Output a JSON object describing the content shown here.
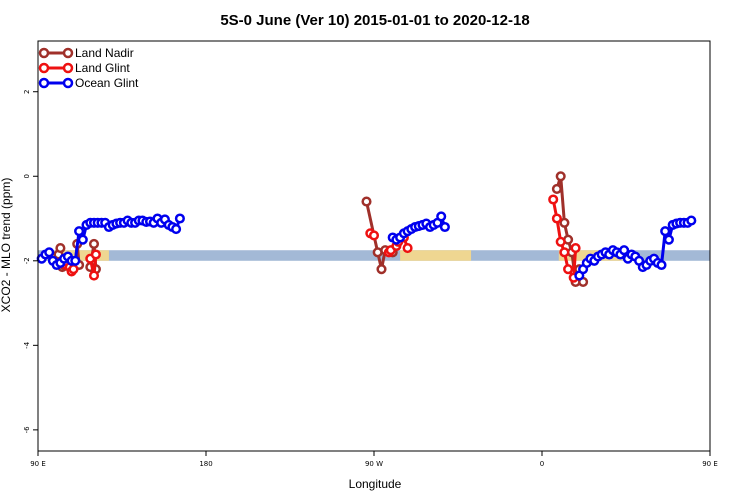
{
  "chart_data": {
    "type": "line",
    "title": "5S-0 June (Ver 10)   2015-01-01 to 2020-12-18",
    "xlabel": "Longitude",
    "ylabel": "XCO2 - MLO trend (ppm)",
    "xlim": [
      90,
      450
    ],
    "ylim": [
      -6.5,
      3.2
    ],
    "x_ticks": [
      {
        "value": 90,
        "label": "90 E"
      },
      {
        "value": 180,
        "label": "180"
      },
      {
        "value": 270,
        "label": "90 W"
      },
      {
        "value": 360,
        "label": "0"
      },
      {
        "value": 450,
        "label": "90 E"
      },
      {
        "value": 540,
        "label": "180"
      }
    ],
    "y_ticks": [
      {
        "value": 2,
        "label": "2"
      },
      {
        "value": 0,
        "label": "0"
      },
      {
        "value": -2,
        "label": "-2"
      },
      {
        "value": -4,
        "label": "-4"
      },
      {
        "value": -6,
        "label": "-6"
      }
    ],
    "colors": {
      "land_nadir": "#a0302a",
      "land_glint": "#ee1111",
      "ocean_glint": "#0000ee",
      "ocean_band": "#a3b9d6",
      "land_band": "#f7d98a"
    },
    "legend": {
      "position": "top-left",
      "entries": [
        "Land Nadir",
        "Land Glint",
        "Ocean Glint"
      ]
    },
    "surface_band": {
      "y_range": [
        -2.0,
        -1.75
      ],
      "ocean_color": "#a3b9d6",
      "land_color": "#f7d98a",
      "land_segments": [
        [
          98,
          128
        ],
        [
          284,
          322
        ],
        [
          369,
          403
        ],
        [
          467,
          484
        ],
        [
          514,
          531
        ]
      ]
    },
    "series": [
      {
        "name": "Land Nadir",
        "color": "#a0302a",
        "segments": [
          [
            [
              101,
              -1.85
            ],
            [
              102,
              -1.7
            ],
            [
              103,
              -2.15
            ],
            [
              104,
              -2.1
            ]
          ],
          [
            [
              108,
              -2.1
            ],
            [
              110,
              -2.1
            ],
            [
              111,
              -1.6
            ],
            [
              112,
              -2.1
            ]
          ],
          [
            [
              118,
              -2.15
            ],
            [
              120,
              -1.6
            ],
            [
              121,
              -2.2
            ]
          ],
          [
            [
              266,
              -0.6
            ],
            [
              272,
              -1.8
            ],
            [
              274,
              -2.2
            ],
            [
              276,
              -1.75
            ],
            [
              280,
              -1.8
            ]
          ],
          [
            [
              368,
              -0.3
            ],
            [
              370,
              0.0
            ],
            [
              372,
              -1.1
            ],
            [
              374,
              -1.5
            ],
            [
              376,
              -1.8
            ],
            [
              378,
              -2.5
            ],
            [
              380,
              -2.2
            ],
            [
              382,
              -2.5
            ]
          ],
          [
            [
              469,
              -1.7
            ],
            [
              470,
              -1.85
            ],
            [
              474,
              -1.85
            ],
            [
              476,
              -2.0
            ],
            [
              478,
              -1.6
            ],
            [
              480,
              -2.2
            ]
          ],
          [
            [
              480,
              -1.7
            ],
            [
              482,
              -1.85
            ],
            [
              484,
              -1.85
            ]
          ],
          [
            [
              488,
              -1.75
            ],
            [
              489,
              -1.55
            ]
          ]
        ]
      },
      {
        "name": "Land Glint",
        "color": "#ee1111",
        "segments": [
          [
            [
              105,
              -2.1
            ],
            [
              106,
              -2.05
            ],
            [
              107,
              -2.15
            ],
            [
              108,
              -2.25
            ],
            [
              109,
              -2.2
            ]
          ],
          [
            [
              118,
              -1.95
            ],
            [
              120,
              -2.35
            ],
            [
              121,
              -1.85
            ]
          ],
          [
            [
              268,
              -1.35
            ],
            [
              270,
              -1.4
            ]
          ],
          [
            [
              278,
              -1.8
            ],
            [
              279,
              -1.75
            ],
            [
              282,
              -1.65
            ],
            [
              283,
              -1.55
            ],
            [
              286,
              -1.45
            ],
            [
              288,
              -1.7
            ]
          ],
          [
            [
              366,
              -0.55
            ],
            [
              368,
              -1.0
            ],
            [
              370,
              -1.55
            ],
            [
              372,
              -1.8
            ],
            [
              374,
              -2.2
            ],
            [
              377,
              -2.4
            ],
            [
              378,
              -1.7
            ]
          ],
          [
            [
              472,
              -2.1
            ],
            [
              473,
              -2.2
            ],
            [
              475,
              -2.2
            ],
            [
              477,
              -1.9
            ],
            [
              480,
              -2.2
            ],
            [
              482,
              -1.95
            ]
          ],
          [
            [
              485,
              -2.0
            ],
            [
              486,
              -2.35
            ]
          ]
        ]
      },
      {
        "name": "Ocean Glint",
        "color": "#0000ee",
        "segments": [
          [
            [
              92,
              -1.95
            ],
            [
              94,
              -1.85
            ],
            [
              96,
              -1.8
            ],
            [
              98,
              -2.0
            ],
            [
              100,
              -2.1
            ],
            [
              102,
              -2.05
            ],
            [
              104,
              -1.95
            ],
            [
              106,
              -1.9
            ],
            [
              108,
              -2.0
            ],
            [
              110,
              -2.0
            ],
            [
              112,
              -1.3
            ],
            [
              114,
              -1.5
            ],
            [
              116,
              -1.15
            ],
            [
              118,
              -1.1
            ],
            [
              120,
              -1.1
            ],
            [
              122,
              -1.1
            ],
            [
              124,
              -1.1
            ],
            [
              126,
              -1.1
            ],
            [
              128,
              -1.2
            ],
            [
              130,
              -1.15
            ],
            [
              132,
              -1.12
            ],
            [
              134,
              -1.1
            ],
            [
              136,
              -1.1
            ],
            [
              138,
              -1.05
            ],
            [
              140,
              -1.1
            ],
            [
              142,
              -1.1
            ],
            [
              144,
              -1.05
            ],
            [
              146,
              -1.05
            ],
            [
              148,
              -1.08
            ],
            [
              150,
              -1.07
            ],
            [
              152,
              -1.1
            ],
            [
              154,
              -1.0
            ],
            [
              156,
              -1.1
            ],
            [
              158,
              -1.02
            ],
            [
              160,
              -1.15
            ],
            [
              162,
              -1.2
            ],
            [
              164,
              -1.25
            ],
            [
              166,
              -1.0
            ]
          ],
          [
            [
              280,
              -1.45
            ],
            [
              282,
              -1.5
            ],
            [
              284,
              -1.45
            ],
            [
              286,
              -1.35
            ],
            [
              288,
              -1.3
            ],
            [
              290,
              -1.25
            ],
            [
              292,
              -1.2
            ],
            [
              294,
              -1.18
            ],
            [
              296,
              -1.15
            ],
            [
              298,
              -1.12
            ],
            [
              300,
              -1.2
            ],
            [
              302,
              -1.15
            ],
            [
              304,
              -1.1
            ],
            [
              306,
              -0.95
            ],
            [
              308,
              -1.2
            ]
          ],
          [
            [
              380,
              -2.35
            ],
            [
              382,
              -2.2
            ],
            [
              384,
              -2.05
            ],
            [
              386,
              -1.95
            ],
            [
              388,
              -2.0
            ],
            [
              390,
              -1.9
            ],
            [
              392,
              -1.85
            ],
            [
              394,
              -1.8
            ],
            [
              396,
              -1.85
            ],
            [
              398,
              -1.75
            ],
            [
              400,
              -1.8
            ],
            [
              402,
              -1.85
            ],
            [
              404,
              -1.75
            ],
            [
              406,
              -1.95
            ],
            [
              408,
              -1.85
            ],
            [
              410,
              -1.9
            ],
            [
              412,
              -2.0
            ],
            [
              414,
              -2.15
            ],
            [
              416,
              -2.1
            ],
            [
              418,
              -2.0
            ],
            [
              420,
              -1.95
            ],
            [
              422,
              -2.05
            ],
            [
              424,
              -2.1
            ],
            [
              426,
              -1.3
            ],
            [
              428,
              -1.5
            ],
            [
              430,
              -1.15
            ],
            [
              432,
              -1.12
            ],
            [
              434,
              -1.1
            ],
            [
              436,
              -1.1
            ],
            [
              438,
              -1.1
            ],
            [
              440,
              -1.05
            ]
          ]
        ]
      }
    ]
  }
}
